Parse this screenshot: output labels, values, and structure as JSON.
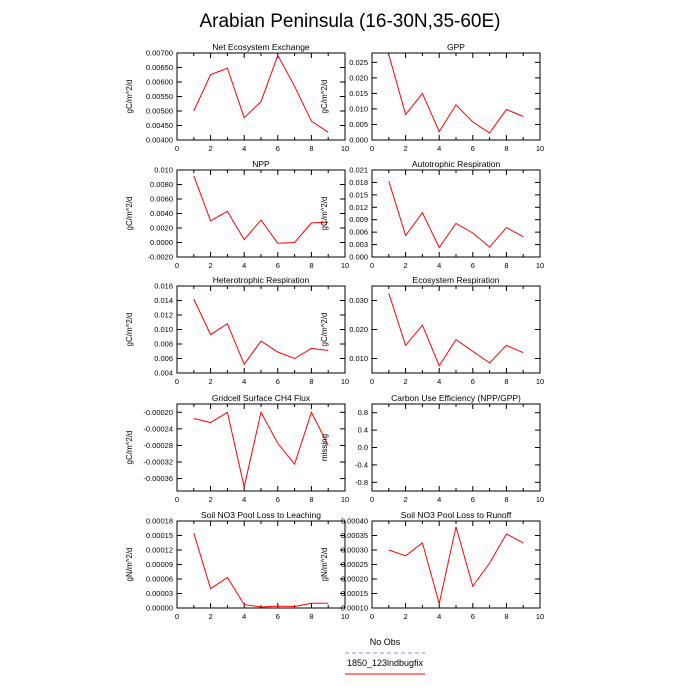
{
  "figure": {
    "title": "Arabian Peninsula (16-30N,35-60E)"
  },
  "legend": {
    "items": [
      {
        "label": "No Obs",
        "color": "#8a8aff",
        "dash": true
      },
      {
        "label": "1850_123lndbugfix",
        "color": "#ff0000",
        "dash": false
      }
    ]
  },
  "chart_data": [
    {
      "type": "line",
      "title": "Net Ecosystem Exchange",
      "ylabel": "gC/m^2/d",
      "xlim": [
        0,
        10
      ],
      "xticks": [
        0,
        2,
        4,
        6,
        8,
        10
      ],
      "xtick_labels": [
        "0",
        "2",
        "4",
        "6",
        "8",
        "10"
      ],
      "ylim": [
        0.004,
        0.007
      ],
      "yticks": [
        0.004,
        0.0045,
        0.005,
        0.0055,
        0.006,
        0.0065,
        0.007
      ],
      "ytick_labels": [
        "0.00400",
        "0.00450",
        "0.00500",
        "0.00550",
        "0.00600",
        "0.00650",
        "0.00700"
      ],
      "x": [
        1,
        2,
        3,
        4,
        5,
        6,
        7,
        8,
        9
      ],
      "y": [
        0.005,
        0.00625,
        0.00648,
        0.00477,
        0.00532,
        0.00692,
        0.00585,
        0.00465,
        0.00427
      ]
    },
    {
      "type": "line",
      "title": "GPP",
      "ylabel": "gC/m^2/d",
      "xlim": [
        0,
        10
      ],
      "xticks": [
        0,
        2,
        4,
        6,
        8,
        10
      ],
      "xtick_labels": [
        "0",
        "2",
        "4",
        "6",
        "8",
        "10"
      ],
      "ylim": [
        0,
        0.028
      ],
      "yticks": [
        0,
        0.005,
        0.01,
        0.015,
        0.02,
        0.025
      ],
      "ytick_labels": [
        "0.000",
        "0.005",
        "0.010",
        "0.015",
        "0.020",
        "0.025"
      ],
      "x": [
        1,
        2,
        3,
        4,
        5,
        6,
        7,
        8,
        9
      ],
      "y": [
        0.0275,
        0.0082,
        0.015,
        0.0027,
        0.0113,
        0.0058,
        0.0023,
        0.0098,
        0.0076
      ]
    },
    {
      "type": "line",
      "title": "NPP",
      "ylabel": "gC/m^2/d",
      "xlim": [
        0,
        10
      ],
      "xticks": [
        0,
        2,
        4,
        6,
        8,
        10
      ],
      "xtick_labels": [
        "0",
        "2",
        "4",
        "6",
        "8",
        "10"
      ],
      "ylim": [
        -0.002,
        0.01
      ],
      "yticks": [
        -0.002,
        0,
        0.002,
        0.004,
        0.006,
        0.008,
        0.01
      ],
      "ytick_labels": [
        "-0.0020",
        "0.0000",
        "0.0020",
        "0.0040",
        "0.0060",
        "0.0080",
        "0.010"
      ],
      "x": [
        1,
        2,
        3,
        4,
        5,
        6,
        7,
        8,
        9
      ],
      "y": [
        0.0092,
        0.003,
        0.0043,
        0.0004,
        0.0031,
        -0.0001,
        0.0,
        0.0027,
        0.0028
      ]
    },
    {
      "type": "line",
      "title": "Autotrophic Respiration",
      "ylabel": "gC/m^2/d",
      "xlim": [
        0,
        10
      ],
      "xticks": [
        0,
        2,
        4,
        6,
        8,
        10
      ],
      "xtick_labels": [
        "0",
        "2",
        "4",
        "6",
        "8",
        "10"
      ],
      "ylim": [
        0,
        0.021
      ],
      "yticks": [
        0,
        0.003,
        0.006,
        0.009,
        0.012,
        0.015,
        0.018,
        0.021
      ],
      "ytick_labels": [
        "0.000",
        "0.003",
        "0.006",
        "0.009",
        "0.012",
        "0.015",
        "0.018",
        "0.021"
      ],
      "x": [
        1,
        2,
        3,
        4,
        5,
        6,
        7,
        8,
        9
      ],
      "y": [
        0.0183,
        0.0052,
        0.0107,
        0.0023,
        0.0081,
        0.0058,
        0.0024,
        0.0071,
        0.0049
      ]
    },
    {
      "type": "line",
      "title": "Heterotrophic Respiration",
      "ylabel": "gC/m^2/d",
      "xlim": [
        0,
        10
      ],
      "xticks": [
        0,
        2,
        4,
        6,
        8,
        10
      ],
      "xtick_labels": [
        "0",
        "2",
        "4",
        "6",
        "8",
        "10"
      ],
      "ylim": [
        0.004,
        0.016
      ],
      "yticks": [
        0.004,
        0.006,
        0.008,
        0.01,
        0.012,
        0.014,
        0.016
      ],
      "ytick_labels": [
        "0.004",
        "0.006",
        "0.008",
        "0.010",
        "0.012",
        "0.014",
        "0.016"
      ],
      "x": [
        1,
        2,
        3,
        4,
        5,
        6,
        7,
        8,
        9
      ],
      "y": [
        0.0142,
        0.0093,
        0.0108,
        0.0052,
        0.0084,
        0.0069,
        0.006,
        0.0074,
        0.0071
      ]
    },
    {
      "type": "line",
      "title": "Ecosystem Respiration",
      "ylabel": "gC/m^2/d",
      "xlim": [
        0,
        10
      ],
      "xticks": [
        0,
        2,
        4,
        6,
        8,
        10
      ],
      "xtick_labels": [
        "0",
        "2",
        "4",
        "6",
        "8",
        "10"
      ],
      "ylim": [
        0.005,
        0.035
      ],
      "yticks": [
        0.01,
        0.02,
        0.03
      ],
      "ytick_labels": [
        "0.010",
        "0.020",
        "0.030"
      ],
      "x": [
        1,
        2,
        3,
        4,
        5,
        6,
        7,
        8,
        9
      ],
      "y": [
        0.0325,
        0.0145,
        0.0215,
        0.0075,
        0.0165,
        0.0125,
        0.0085,
        0.0145,
        0.012
      ]
    },
    {
      "type": "line",
      "title": "Gridcell Surface CH4 Flux",
      "ylabel": "gC/m^2/d",
      "xlim": [
        0,
        10
      ],
      "xticks": [
        0,
        2,
        4,
        6,
        8,
        10
      ],
      "xtick_labels": [
        "0",
        "2",
        "4",
        "6",
        "8",
        "10"
      ],
      "ylim": [
        -0.00039,
        -0.00018
      ],
      "yticks": [
        -0.00036,
        -0.00032,
        -0.00028,
        -0.00024,
        -0.0002
      ],
      "ytick_labels": [
        "-0.00036",
        "-0.00032",
        "-0.00028",
        "-0.00024",
        "-0.00020"
      ],
      "x": [
        1,
        2,
        3,
        4,
        5,
        6,
        7,
        8,
        9
      ],
      "y": [
        -0.000215,
        -0.000225,
        -0.0002,
        -0.00038,
        -0.0002,
        -0.000275,
        -0.000325,
        -0.0002,
        -0.00028
      ]
    },
    {
      "type": "line",
      "title": "Carbon Use Efficiency (NPP/GPP)",
      "ylabel": "missing",
      "xlim": [
        0,
        10
      ],
      "xticks": [
        0,
        2,
        4,
        6,
        8,
        10
      ],
      "xtick_labels": [
        "0",
        "2",
        "4",
        "6",
        "8",
        "10"
      ],
      "ylim": [
        -1,
        1
      ],
      "yticks": [
        -0.8,
        -0.4,
        0,
        0.4,
        0.8
      ],
      "ytick_labels": [
        "-0.8",
        "-0.4",
        "0.0",
        "0.4",
        "0.8"
      ],
      "x": [],
      "y": []
    },
    {
      "type": "line",
      "title": "Soil NO3 Pool Loss to Leaching",
      "ylabel": "gN/m^2/d",
      "xlim": [
        0,
        10
      ],
      "xticks": [
        0,
        2,
        4,
        6,
        8,
        10
      ],
      "xtick_labels": [
        "0",
        "2",
        "4",
        "6",
        "8",
        "10"
      ],
      "ylim": [
        0,
        0.00018
      ],
      "yticks": [
        0,
        3e-05,
        6e-05,
        9e-05,
        0.00012,
        0.00015,
        0.00018
      ],
      "ytick_labels": [
        "0.00000",
        "0.00003",
        "0.00006",
        "0.00009",
        "0.00012",
        "0.00015",
        "0.00018"
      ],
      "x": [
        1,
        2,
        3,
        4,
        5,
        6,
        7,
        8,
        9
      ],
      "y": [
        0.000155,
        4e-05,
        6.3e-05,
        7e-06,
        2e-06,
        4e-06,
        3e-06,
        1e-05,
        1e-05
      ]
    },
    {
      "type": "line",
      "title": "Soil NO3 Pool Loss to Runoff",
      "ylabel": "gN/m^2/d",
      "xlim": [
        0,
        10
      ],
      "xticks": [
        0,
        2,
        4,
        6,
        8,
        10
      ],
      "xtick_labels": [
        "0",
        "2",
        "4",
        "6",
        "8",
        "10"
      ],
      "ylim": [
        0.0001,
        0.0004
      ],
      "yticks": [
        0.0001,
        0.00015,
        0.0002,
        0.00025,
        0.0003,
        0.00035,
        0.0004
      ],
      "ytick_labels": [
        "0.00010",
        "0.00015",
        "0.00020",
        "0.00025",
        "0.00030",
        "0.00035",
        "0.00040"
      ],
      "x": [
        1,
        2,
        3,
        4,
        5,
        6,
        7,
        8,
        9
      ],
      "y": [
        0.0003,
        0.00028,
        0.000325,
        0.000115,
        0.00038,
        0.000175,
        0.000255,
        0.000355,
        0.000325
      ]
    }
  ]
}
